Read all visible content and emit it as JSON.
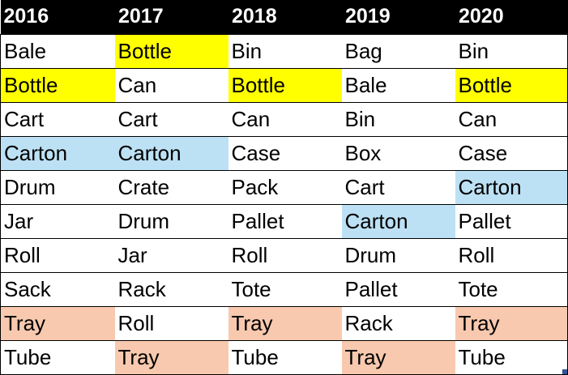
{
  "colors": {
    "header_bg": "#000000",
    "header_text": "#ffffff",
    "bottle": "#ffff00",
    "carton": "#bde1f4",
    "tray": "#f8c9ae",
    "default": "#ffffff"
  },
  "table": {
    "headers": [
      "2016",
      "2017",
      "2018",
      "2019",
      "2020"
    ],
    "rows": [
      [
        {
          "text": "Bale",
          "fill": "default"
        },
        {
          "text": "Bottle",
          "fill": "bottle"
        },
        {
          "text": "Bin",
          "fill": "default"
        },
        {
          "text": "Bag",
          "fill": "default"
        },
        {
          "text": "Bin",
          "fill": "default"
        }
      ],
      [
        {
          "text": "Bottle",
          "fill": "bottle"
        },
        {
          "text": "Can",
          "fill": "default"
        },
        {
          "text": "Bottle",
          "fill": "bottle"
        },
        {
          "text": "Bale",
          "fill": "default"
        },
        {
          "text": "Bottle",
          "fill": "bottle"
        }
      ],
      [
        {
          "text": "Cart",
          "fill": "default"
        },
        {
          "text": "Cart",
          "fill": "default"
        },
        {
          "text": "Can",
          "fill": "default"
        },
        {
          "text": "Bin",
          "fill": "default"
        },
        {
          "text": "Can",
          "fill": "default"
        }
      ],
      [
        {
          "text": "Carton",
          "fill": "carton"
        },
        {
          "text": "Carton",
          "fill": "carton"
        },
        {
          "text": "Case",
          "fill": "default"
        },
        {
          "text": "Box",
          "fill": "default"
        },
        {
          "text": "Case",
          "fill": "default"
        }
      ],
      [
        {
          "text": "Drum",
          "fill": "default"
        },
        {
          "text": "Crate",
          "fill": "default"
        },
        {
          "text": "Pack",
          "fill": "default"
        },
        {
          "text": "Cart",
          "fill": "default"
        },
        {
          "text": "Carton",
          "fill": "carton"
        }
      ],
      [
        {
          "text": "Jar",
          "fill": "default"
        },
        {
          "text": "Drum",
          "fill": "default"
        },
        {
          "text": "Pallet",
          "fill": "default"
        },
        {
          "text": "Carton",
          "fill": "carton"
        },
        {
          "text": "Pallet",
          "fill": "default"
        }
      ],
      [
        {
          "text": "Roll",
          "fill": "default"
        },
        {
          "text": "Jar",
          "fill": "default"
        },
        {
          "text": "Roll",
          "fill": "default"
        },
        {
          "text": "Drum",
          "fill": "default"
        },
        {
          "text": "Roll",
          "fill": "default"
        }
      ],
      [
        {
          "text": "Sack",
          "fill": "default"
        },
        {
          "text": "Rack",
          "fill": "default"
        },
        {
          "text": "Tote",
          "fill": "default"
        },
        {
          "text": "Pallet",
          "fill": "default"
        },
        {
          "text": "Tote",
          "fill": "default"
        }
      ],
      [
        {
          "text": "Tray",
          "fill": "tray"
        },
        {
          "text": "Roll",
          "fill": "default"
        },
        {
          "text": "Tray",
          "fill": "tray"
        },
        {
          "text": "Rack",
          "fill": "default"
        },
        {
          "text": "Tray",
          "fill": "tray"
        }
      ],
      [
        {
          "text": "Tube",
          "fill": "default"
        },
        {
          "text": "Tray",
          "fill": "tray"
        },
        {
          "text": "Tube",
          "fill": "default"
        },
        {
          "text": "Tray",
          "fill": "tray"
        },
        {
          "text": "Tube",
          "fill": "default"
        }
      ]
    ]
  }
}
